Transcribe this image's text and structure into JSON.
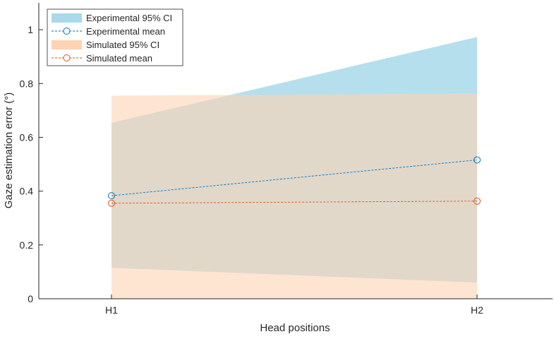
{
  "chart_data": {
    "type": "line",
    "title": "",
    "xlabel": "Head positions",
    "ylabel": "Gaze estimation error (°)",
    "categories": [
      "H1",
      "H2"
    ],
    "ylim": [
      0,
      1.1
    ],
    "yticks": [
      0,
      0.2,
      0.4,
      0.6,
      0.8,
      1
    ],
    "ytick_labels": [
      "0",
      "0.2",
      "0.4",
      "0.6",
      "0.8",
      "1"
    ],
    "grid": false,
    "legend_position": "top-left",
    "series": [
      {
        "name": "Experimental mean",
        "ci_name": "Experimental 95% CI",
        "values": [
          0.383,
          0.516
        ],
        "ci_lower": [
          0.115,
          0.06
        ],
        "ci_upper": [
          0.654,
          0.973
        ],
        "line_color": "#0072BD",
        "fill_color": "#a9d9ea"
      },
      {
        "name": "Simulated mean",
        "ci_name": "Simulated 95% CI",
        "values": [
          0.355,
          0.363
        ],
        "ci_lower": [
          0,
          0
        ],
        "ci_upper": [
          0.755,
          0.763
        ],
        "line_color": "#D95319",
        "fill_color": "#fdd3b3"
      }
    ]
  }
}
